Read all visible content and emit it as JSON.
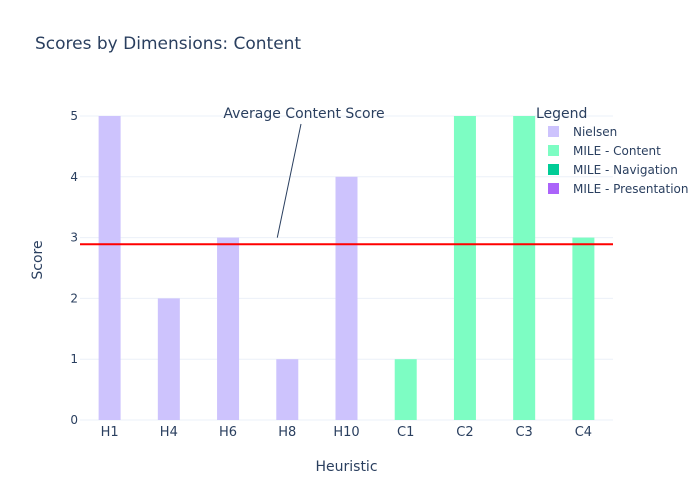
{
  "chart_data": {
    "type": "bar",
    "title": "Scores by Dimensions: Content",
    "xlabel": "Heuristic",
    "ylabel": "Score",
    "ylim": [
      0,
      5
    ],
    "yticks": [
      0,
      1,
      2,
      3,
      4,
      5
    ],
    "categories": [
      "H1",
      "H4",
      "H6",
      "H8",
      "H10",
      "C1",
      "C2",
      "C3",
      "C4"
    ],
    "series": [
      {
        "name": "Nielsen",
        "color": "#cdc3fd",
        "values": [
          5,
          2,
          3,
          1,
          4,
          null,
          null,
          null,
          null
        ]
      },
      {
        "name": "MILE - Content",
        "color": "#7dfdc3",
        "values": [
          null,
          null,
          null,
          null,
          null,
          1,
          5,
          5,
          3
        ]
      },
      {
        "name": "MILE - Navigation",
        "color": "#00cc96",
        "values": [
          null,
          null,
          null,
          null,
          null,
          null,
          null,
          null,
          null
        ]
      },
      {
        "name": "MILE - Presentation",
        "color": "#ab63fa",
        "values": [
          null,
          null,
          null,
          null,
          null,
          null,
          null,
          null,
          null
        ]
      }
    ],
    "reference_line": {
      "value": 2.89,
      "color": "#ff0000"
    },
    "annotation": {
      "text": "Average Content Score",
      "points_to": {
        "category": "H8",
        "value": 3
      }
    },
    "legend": {
      "title": "Legend",
      "placement": "top-right"
    },
    "grid": true
  }
}
